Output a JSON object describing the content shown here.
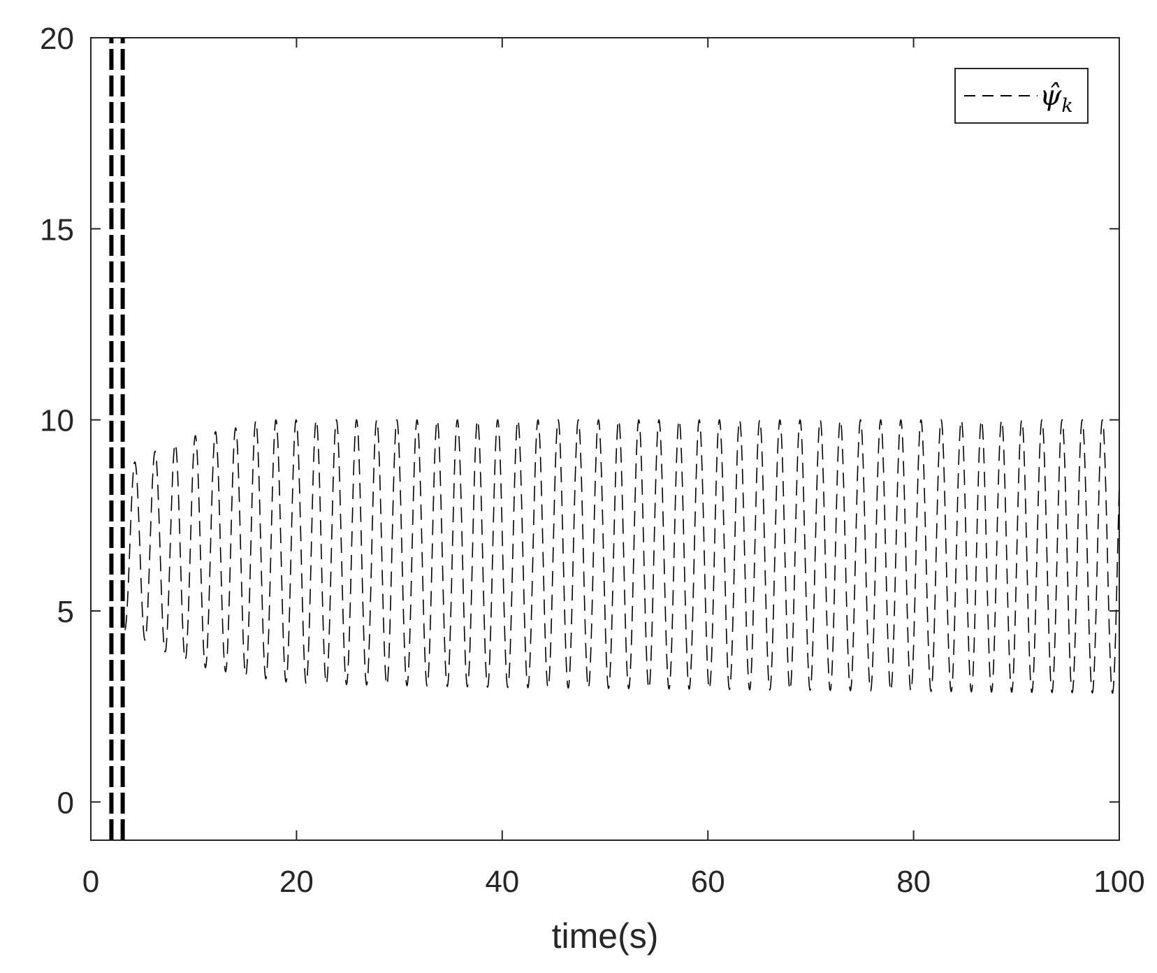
{
  "chart_data": {
    "type": "line",
    "title": "",
    "xlabel": "time(s)",
    "ylabel": "",
    "xlim": [
      0,
      100
    ],
    "ylim": [
      -1,
      20
    ],
    "xticks": [
      0,
      20,
      40,
      60,
      80,
      100
    ],
    "yticks": [
      0,
      5,
      10,
      15,
      20
    ],
    "xtick_labels": [
      "0",
      "20",
      "40",
      "60",
      "80",
      "100"
    ],
    "ytick_labels": [
      "0",
      "5",
      "10",
      "15",
      "20"
    ],
    "grid": false,
    "legend_position": "top-right",
    "series": [
      {
        "name": "ψ̂k",
        "line_style": "dashed",
        "color": "#000000",
        "initial_spike": {
          "x": [
            2.0,
            3.1
          ],
          "y_range": [
            -1,
            20
          ]
        },
        "oscillation": {
          "x_start": 3.3,
          "x_end": 100,
          "period": 1.96,
          "peaks": [
            {
              "x": 4.4,
              "y": 8.9
            },
            {
              "x": 6.4,
              "y": 9.2
            },
            {
              "x": 8.4,
              "y": 9.4
            },
            {
              "x": 10.3,
              "y": 9.6
            },
            {
              "x": 12.3,
              "y": 9.7
            },
            {
              "x": 14.3,
              "y": 9.8
            },
            {
              "x": 16.3,
              "y": 10.0
            },
            {
              "x": 20.0,
              "y": 10.0
            },
            {
              "x": 40.0,
              "y": 10.0
            },
            {
              "x": 60.0,
              "y": 10.0
            },
            {
              "x": 80.0,
              "y": 10.0
            },
            {
              "x": 98.5,
              "y": 10.0
            }
          ],
          "troughs": [
            {
              "x": 3.5,
              "y": 4.5
            },
            {
              "x": 5.5,
              "y": 4.2
            },
            {
              "x": 7.4,
              "y": 3.9
            },
            {
              "x": 9.4,
              "y": 3.7
            },
            {
              "x": 11.3,
              "y": 3.5
            },
            {
              "x": 13.3,
              "y": 3.4
            },
            {
              "x": 15.3,
              "y": 3.3
            },
            {
              "x": 20.0,
              "y": 3.1
            },
            {
              "x": 40.0,
              "y": 3.0
            },
            {
              "x": 60.0,
              "y": 2.95
            },
            {
              "x": 80.0,
              "y": 2.9
            },
            {
              "x": 99.5,
              "y": 2.85
            }
          ]
        }
      }
    ]
  },
  "legend": {
    "label_main": "ψ̂",
    "label_sub": "k"
  }
}
